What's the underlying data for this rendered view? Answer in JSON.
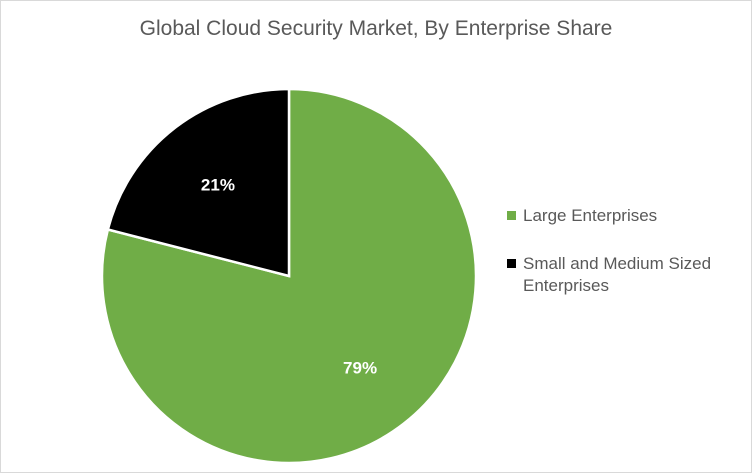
{
  "chart_data": {
    "type": "pie",
    "title": "Global Cloud Security Market, By Enterprise Share",
    "slices": [
      {
        "label": "Large Enterprises",
        "value": 79,
        "display": "79%",
        "color": "#70AD47"
      },
      {
        "label": "Small and Medium Sized Enterprises",
        "value": 21,
        "display": "21%",
        "color": "#000000"
      }
    ],
    "legend_position": "right"
  }
}
